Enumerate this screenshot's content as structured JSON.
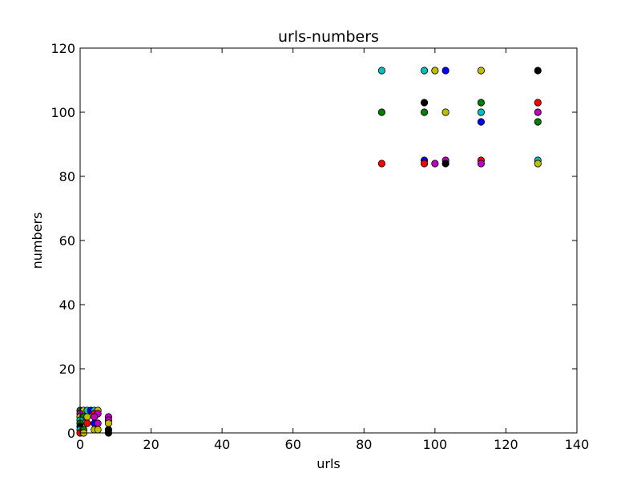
{
  "chart_data": {
    "type": "scatter",
    "title": "urls-numbers",
    "xlabel": "urls",
    "ylabel": "numbers",
    "xlim": [
      0,
      140
    ],
    "ylim": [
      0,
      120
    ],
    "xticks": [
      0,
      20,
      40,
      60,
      80,
      100,
      120,
      140
    ],
    "yticks": [
      0,
      20,
      40,
      60,
      80,
      100,
      120
    ],
    "grid": false,
    "legend": "none",
    "marker": "circle",
    "points": [
      {
        "x": 85,
        "y": 113,
        "color": "#00bfbf"
      },
      {
        "x": 97,
        "y": 113,
        "color": "#00bfbf"
      },
      {
        "x": 100,
        "y": 113,
        "color": "#bfbf00"
      },
      {
        "x": 103,
        "y": 113,
        "color": "#0000ff"
      },
      {
        "x": 113,
        "y": 113,
        "color": "#bfbf00"
      },
      {
        "x": 129,
        "y": 113,
        "color": "#000000"
      },
      {
        "x": 97,
        "y": 103,
        "color": "#000000"
      },
      {
        "x": 113,
        "y": 103,
        "color": "#008000"
      },
      {
        "x": 129,
        "y": 103,
        "color": "#ff0000"
      },
      {
        "x": 85,
        "y": 100,
        "color": "#008000"
      },
      {
        "x": 97,
        "y": 100,
        "color": "#008000"
      },
      {
        "x": 103,
        "y": 100,
        "color": "#bfbf00"
      },
      {
        "x": 113,
        "y": 100,
        "color": "#00bfbf"
      },
      {
        "x": 129,
        "y": 100,
        "color": "#bf00bf"
      },
      {
        "x": 113,
        "y": 97,
        "color": "#0000ff"
      },
      {
        "x": 129,
        "y": 97,
        "color": "#008000"
      },
      {
        "x": 97,
        "y": 85,
        "color": "#0000ff"
      },
      {
        "x": 103,
        "y": 85,
        "color": "#bf00bf"
      },
      {
        "x": 113,
        "y": 85,
        "color": "#ff0000"
      },
      {
        "x": 129,
        "y": 85,
        "color": "#00bfbf"
      },
      {
        "x": 85,
        "y": 84,
        "color": "#ff0000"
      },
      {
        "x": 97,
        "y": 84,
        "color": "#ff0000"
      },
      {
        "x": 100,
        "y": 84,
        "color": "#bf00bf"
      },
      {
        "x": 103,
        "y": 84,
        "color": "#000000"
      },
      {
        "x": 113,
        "y": 84,
        "color": "#bf00bf"
      },
      {
        "x": 129,
        "y": 84,
        "color": "#bfbf00"
      },
      {
        "x": 0,
        "y": 7,
        "color": "#008000"
      },
      {
        "x": 1,
        "y": 7,
        "color": "#bfbf00"
      },
      {
        "x": 2,
        "y": 7,
        "color": "#00bfbf"
      },
      {
        "x": 3,
        "y": 7,
        "color": "#0000ff"
      },
      {
        "x": 4,
        "y": 7,
        "color": "#00bfbf"
      },
      {
        "x": 5,
        "y": 7,
        "color": "#bfbf00"
      },
      {
        "x": 0,
        "y": 6,
        "color": "#bf00bf"
      },
      {
        "x": 4,
        "y": 6,
        "color": "#ff0000"
      },
      {
        "x": 5,
        "y": 6,
        "color": "#bf00bf"
      },
      {
        "x": 0,
        "y": 5,
        "color": "#bfbf00"
      },
      {
        "x": 1,
        "y": 5,
        "color": "#008000"
      },
      {
        "x": 2,
        "y": 5,
        "color": "#bfbf00"
      },
      {
        "x": 4,
        "y": 5,
        "color": "#bf00bf"
      },
      {
        "x": 8,
        "y": 5,
        "color": "#bf00bf"
      },
      {
        "x": 0,
        "y": 4,
        "color": "#00bfbf"
      },
      {
        "x": 8,
        "y": 4,
        "color": "#bf00bf"
      },
      {
        "x": 0,
        "y": 3,
        "color": "#008000"
      },
      {
        "x": 2,
        "y": 3,
        "color": "#ff0000"
      },
      {
        "x": 4,
        "y": 3,
        "color": "#0000ff"
      },
      {
        "x": 5,
        "y": 3,
        "color": "#bf00bf"
      },
      {
        "x": 8,
        "y": 3,
        "color": "#bfbf00"
      },
      {
        "x": 0,
        "y": 2,
        "color": "#000000"
      },
      {
        "x": 0,
        "y": 1,
        "color": "#00bfbf"
      },
      {
        "x": 1,
        "y": 1,
        "color": "#008000"
      },
      {
        "x": 4,
        "y": 1,
        "color": "#bfbf00"
      },
      {
        "x": 5,
        "y": 1,
        "color": "#bfbf00"
      },
      {
        "x": 8,
        "y": 1,
        "color": "#000000"
      },
      {
        "x": 0,
        "y": 0,
        "color": "#ff0000"
      },
      {
        "x": 1,
        "y": 0,
        "color": "#bfbf00"
      },
      {
        "x": 8,
        "y": 0,
        "color": "#000000"
      }
    ]
  }
}
